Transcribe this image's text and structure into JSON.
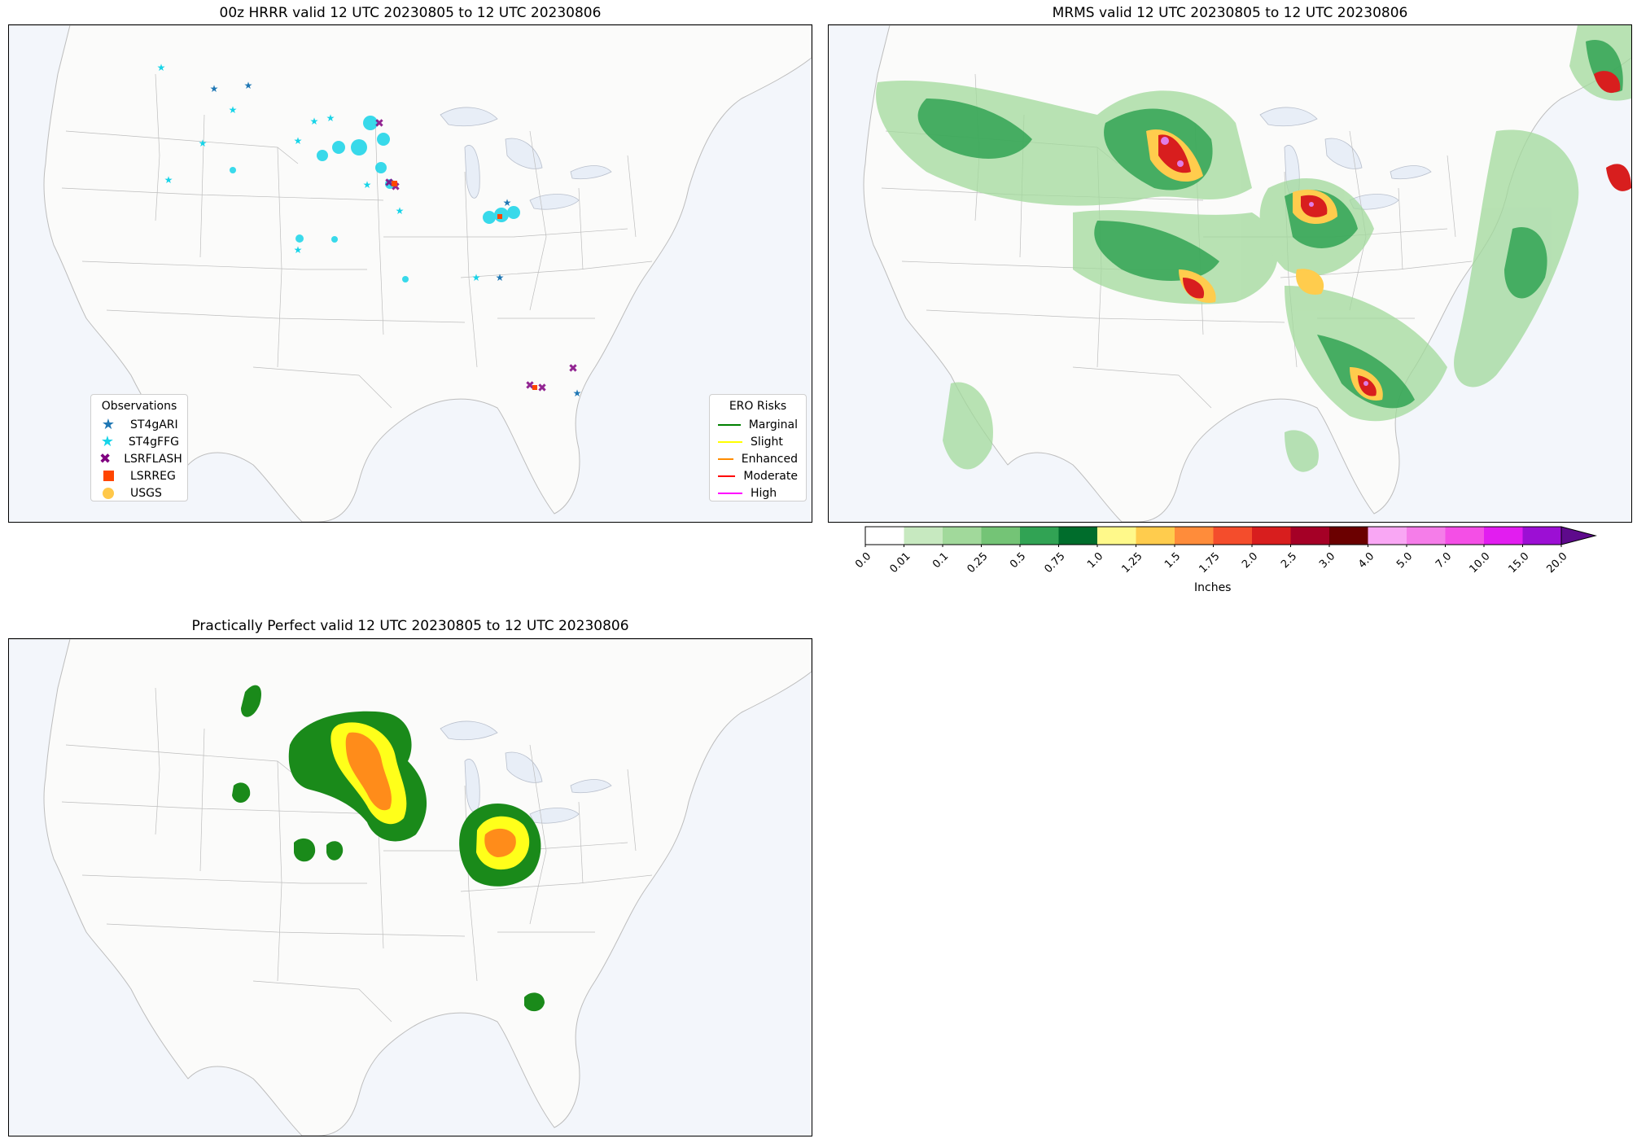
{
  "panels": {
    "hrrr": {
      "title": "00z HRRR valid 12 UTC 20230805 to 12 UTC 20230806"
    },
    "mrms": {
      "title": "MRMS valid 12 UTC 20230805 to 12 UTC 20230806"
    },
    "pp": {
      "title": "Practically Perfect valid 12 UTC 20230805 to 12 UTC 20230806"
    }
  },
  "observations_legend": {
    "title": "Observations",
    "items": [
      {
        "label": "ST4gARI",
        "symbol": "star",
        "color": "#1f77b4"
      },
      {
        "label": "ST4gFFG",
        "symbol": "star",
        "color": "#17d4e8"
      },
      {
        "label": "LSRFLASH",
        "symbol": "x",
        "color": "#800080"
      },
      {
        "label": "LSRREG",
        "symbol": "square",
        "color": "#ff4500"
      },
      {
        "label": "USGS",
        "symbol": "circle",
        "color": "#ffc84a"
      }
    ]
  },
  "ero_legend": {
    "title": "ERO Risks",
    "items": [
      {
        "label": "Marginal",
        "color": "#008000"
      },
      {
        "label": "Slight",
        "color": "#ffff00"
      },
      {
        "label": "Enhanced",
        "color": "#ff8c00"
      },
      {
        "label": "Moderate",
        "color": "#ff0000"
      },
      {
        "label": "High",
        "color": "#ff00ff"
      }
    ]
  },
  "colorbar": {
    "label": "Inches",
    "ticks": [
      "0.0",
      "0.01",
      "0.1",
      "0.25",
      "0.5",
      "0.75",
      "1.0",
      "1.25",
      "1.5",
      "1.75",
      "2.0",
      "2.5",
      "3.0",
      "4.0",
      "5.0",
      "7.0",
      "10.0",
      "15.0",
      "20.0"
    ],
    "colors": [
      "#ffffff",
      "#c7e9c0",
      "#a1d99b",
      "#74c476",
      "#31a354",
      "#006d2c",
      "#fff98a",
      "#ffcc4d",
      "#ff8c3a",
      "#f44d2c",
      "#d81e1e",
      "#a50026",
      "#6b0000",
      "#f9a7f4",
      "#f57de9",
      "#f44fe6",
      "#e21df0",
      "#9c0fd4",
      "#5e0a8c"
    ]
  }
}
